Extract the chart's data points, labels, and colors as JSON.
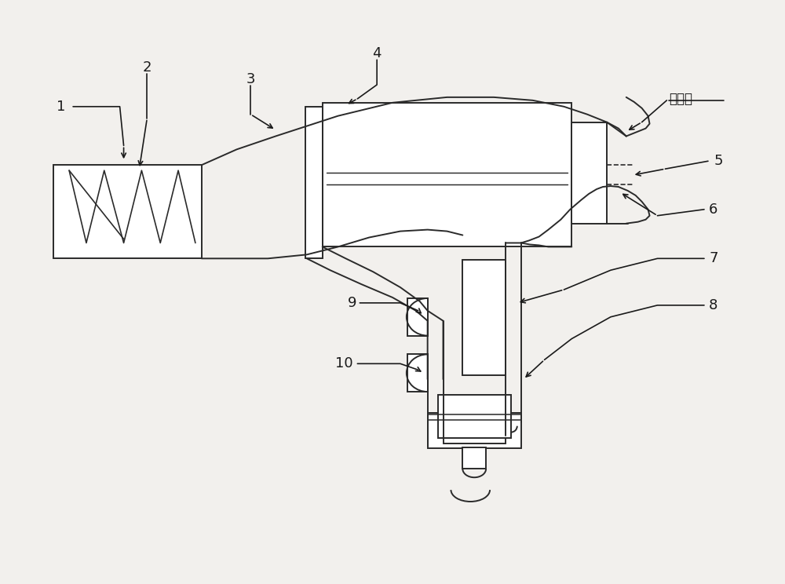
{
  "background_color": "#f2f0ed",
  "line_color": "#2a2a2a",
  "line_width": 1.4,
  "figsize": [
    10.0,
    7.44
  ]
}
